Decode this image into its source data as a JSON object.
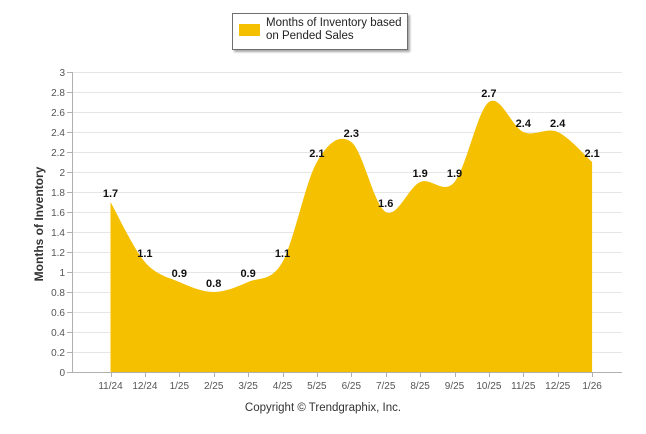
{
  "chart_data": {
    "type": "area",
    "title": "",
    "ylabel": "Months of Inventory",
    "xlabel": "",
    "categories": [
      "11/24",
      "12/24",
      "1/25",
      "2/25",
      "3/25",
      "4/25",
      "5/25",
      "6/25",
      "7/25",
      "8/25",
      "9/25",
      "10/25",
      "11/25",
      "12/25",
      "1/26"
    ],
    "series": [
      {
        "name": "Months of Inventory based on Pended Sales",
        "values": [
          1.7,
          1.1,
          0.9,
          0.8,
          0.9,
          1.1,
          2.1,
          2.3,
          1.6,
          1.9,
          1.9,
          2.7,
          2.4,
          2.4,
          2.1
        ],
        "color": "#f5c000"
      }
    ],
    "ylim": [
      0,
      3
    ],
    "yticks": [
      "0",
      "0.2",
      "0.4",
      "0.6",
      "0.8",
      "1",
      "1.2",
      "1.4",
      "1.6",
      "1.8",
      "2",
      "2.2",
      "2.4",
      "2.6",
      "2.8",
      "3"
    ],
    "grid": true,
    "legend_position": "top-center"
  },
  "legend": {
    "label": "Months of Inventory based on Pended Sales",
    "color": "#f5c000"
  },
  "footer": {
    "copyright": "Copyright © Trendgraphix, Inc."
  },
  "colors": {
    "area": "#f5c000",
    "grid": "#e6e6e6",
    "axis": "#b0b0b0",
    "text": "#333333"
  }
}
